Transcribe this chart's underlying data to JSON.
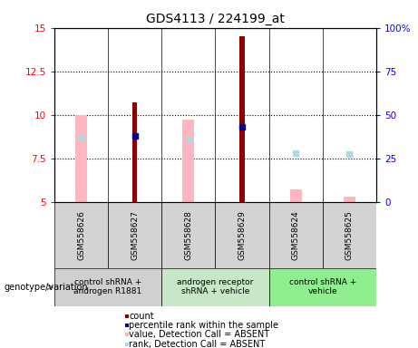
{
  "title": "GDS4113 / 224199_at",
  "samples": [
    "GSM558626",
    "GSM558627",
    "GSM558628",
    "GSM558629",
    "GSM558624",
    "GSM558625"
  ],
  "groups": [
    {
      "label": "control shRNA +\nandrogen R1881",
      "samples": [
        "GSM558626",
        "GSM558627"
      ],
      "color": "#d0d0d0"
    },
    {
      "label": "androgen receptor\nshRNA + vehicle",
      "samples": [
        "GSM558628",
        "GSM558629"
      ],
      "color": "#c8e6c8"
    },
    {
      "label": "control shRNA +\nvehicle",
      "samples": [
        "GSM558624",
        "GSM558625"
      ],
      "color": "#90ee90"
    }
  ],
  "count_values": [
    null,
    10.7,
    null,
    14.5,
    null,
    null
  ],
  "percentile_values": [
    null,
    8.8,
    null,
    9.3,
    null,
    null
  ],
  "absent_value_bars": [
    10.0,
    null,
    9.7,
    null,
    5.7,
    5.3
  ],
  "absent_rank_dots": [
    8.7,
    null,
    8.6,
    null,
    7.8,
    7.75
  ],
  "ylim_left": [
    5,
    15
  ],
  "ylim_right": [
    0,
    100
  ],
  "yticks_left": [
    5,
    7.5,
    10,
    12.5,
    15
  ],
  "ytick_labels_left": [
    "5",
    "7.5",
    "10",
    "12.5",
    "15"
  ],
  "yticks_right": [
    0,
    25,
    50,
    75,
    100
  ],
  "ytick_labels_right": [
    "0",
    "25",
    "50",
    "75",
    "100%"
  ],
  "bar_bottom": 5,
  "count_color": "#8b0000",
  "percentile_color": "#00008b",
  "absent_value_color": "#ffb6c1",
  "absent_rank_color": "#add8e6",
  "legend_items": [
    {
      "color": "#8b0000",
      "label": "count"
    },
    {
      "color": "#00008b",
      "label": "percentile rank within the sample"
    },
    {
      "color": "#ffb6c1",
      "label": "value, Detection Call = ABSENT"
    },
    {
      "color": "#add8e6",
      "label": "rank, Detection Call = ABSENT"
    }
  ],
  "genotype_label": "genotype/variation",
  "bar_width": 0.35,
  "absent_bar_width": 0.22,
  "count_bar_width": 0.09
}
